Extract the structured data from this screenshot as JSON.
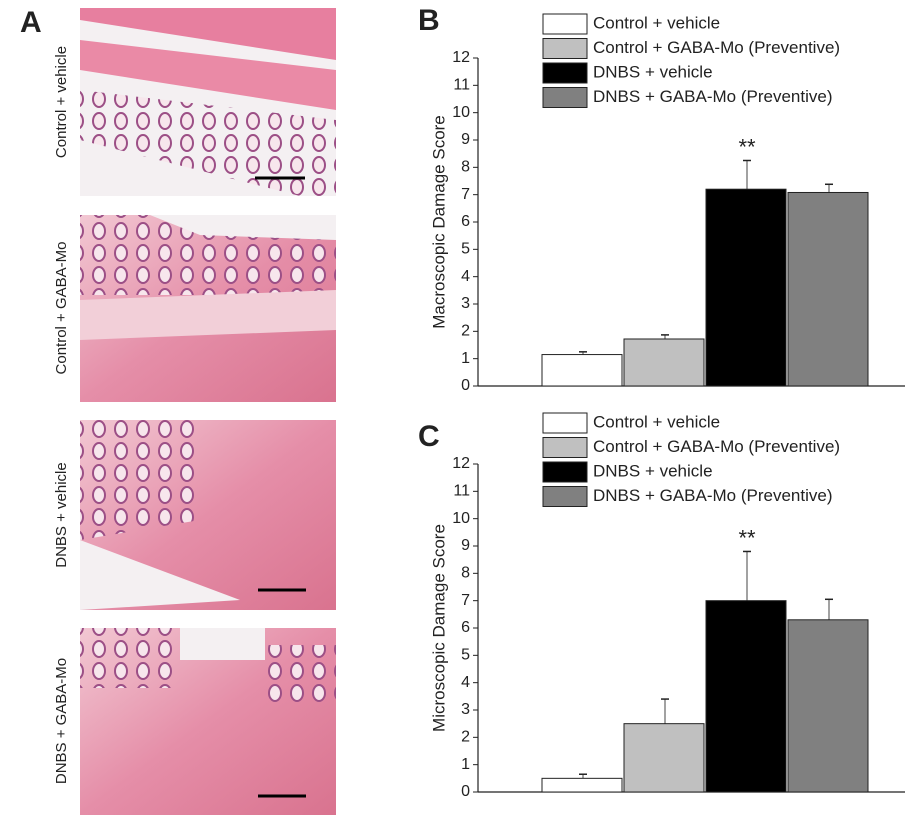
{
  "panel_a": {
    "label": "A",
    "images": [
      "Control + vehicle",
      "Control + GABA-Mo",
      "DNBS + vehicle",
      "DNBS + GABA-Mo"
    ]
  },
  "chart_data": [
    {
      "type": "bar",
      "panel_label": "B",
      "y_label": "Macroscopic Damage Score",
      "ylim": [
        0,
        12
      ],
      "yticks": [
        0,
        1,
        2,
        3,
        4,
        5,
        6,
        7,
        8,
        9,
        10,
        11,
        12
      ],
      "series": [
        {
          "name": "Control + vehicle",
          "color": "#ffffff",
          "values": [
            1.15
          ],
          "errors": [
            0.1
          ]
        },
        {
          "name": "Control + GABA-Mo (Preventive)",
          "color": "#c0c0c0",
          "values": [
            1.72
          ],
          "errors": [
            0.15
          ]
        },
        {
          "name": "DNBS + vehicle",
          "color": "#000000",
          "values": [
            7.2
          ],
          "errors": [
            1.05
          ],
          "annotation": "**"
        },
        {
          "name": "DNBS + GABA-Mo (Preventive)",
          "color": "#808080",
          "values": [
            7.08
          ],
          "errors": [
            0.3
          ]
        }
      ]
    },
    {
      "type": "bar",
      "panel_label": "C",
      "y_label": "Microscopic Damage Score",
      "ylim": [
        0,
        12
      ],
      "yticks": [
        0,
        1,
        2,
        3,
        4,
        5,
        6,
        7,
        8,
        9,
        10,
        11,
        12
      ],
      "series": [
        {
          "name": "Control + vehicle",
          "color": "#ffffff",
          "values": [
            0.5
          ],
          "errors": [
            0.15
          ]
        },
        {
          "name": "Control + GABA-Mo (Preventive)",
          "color": "#c0c0c0",
          "values": [
            2.5
          ],
          "errors": [
            0.9
          ]
        },
        {
          "name": "DNBS + vehicle",
          "color": "#000000",
          "values": [
            7.0
          ],
          "errors": [
            1.8
          ],
          "annotation": "**"
        },
        {
          "name": "DNBS + GABA-Mo (Preventive)",
          "color": "#808080",
          "values": [
            6.3
          ],
          "errors": [
            0.75
          ]
        }
      ]
    }
  ]
}
